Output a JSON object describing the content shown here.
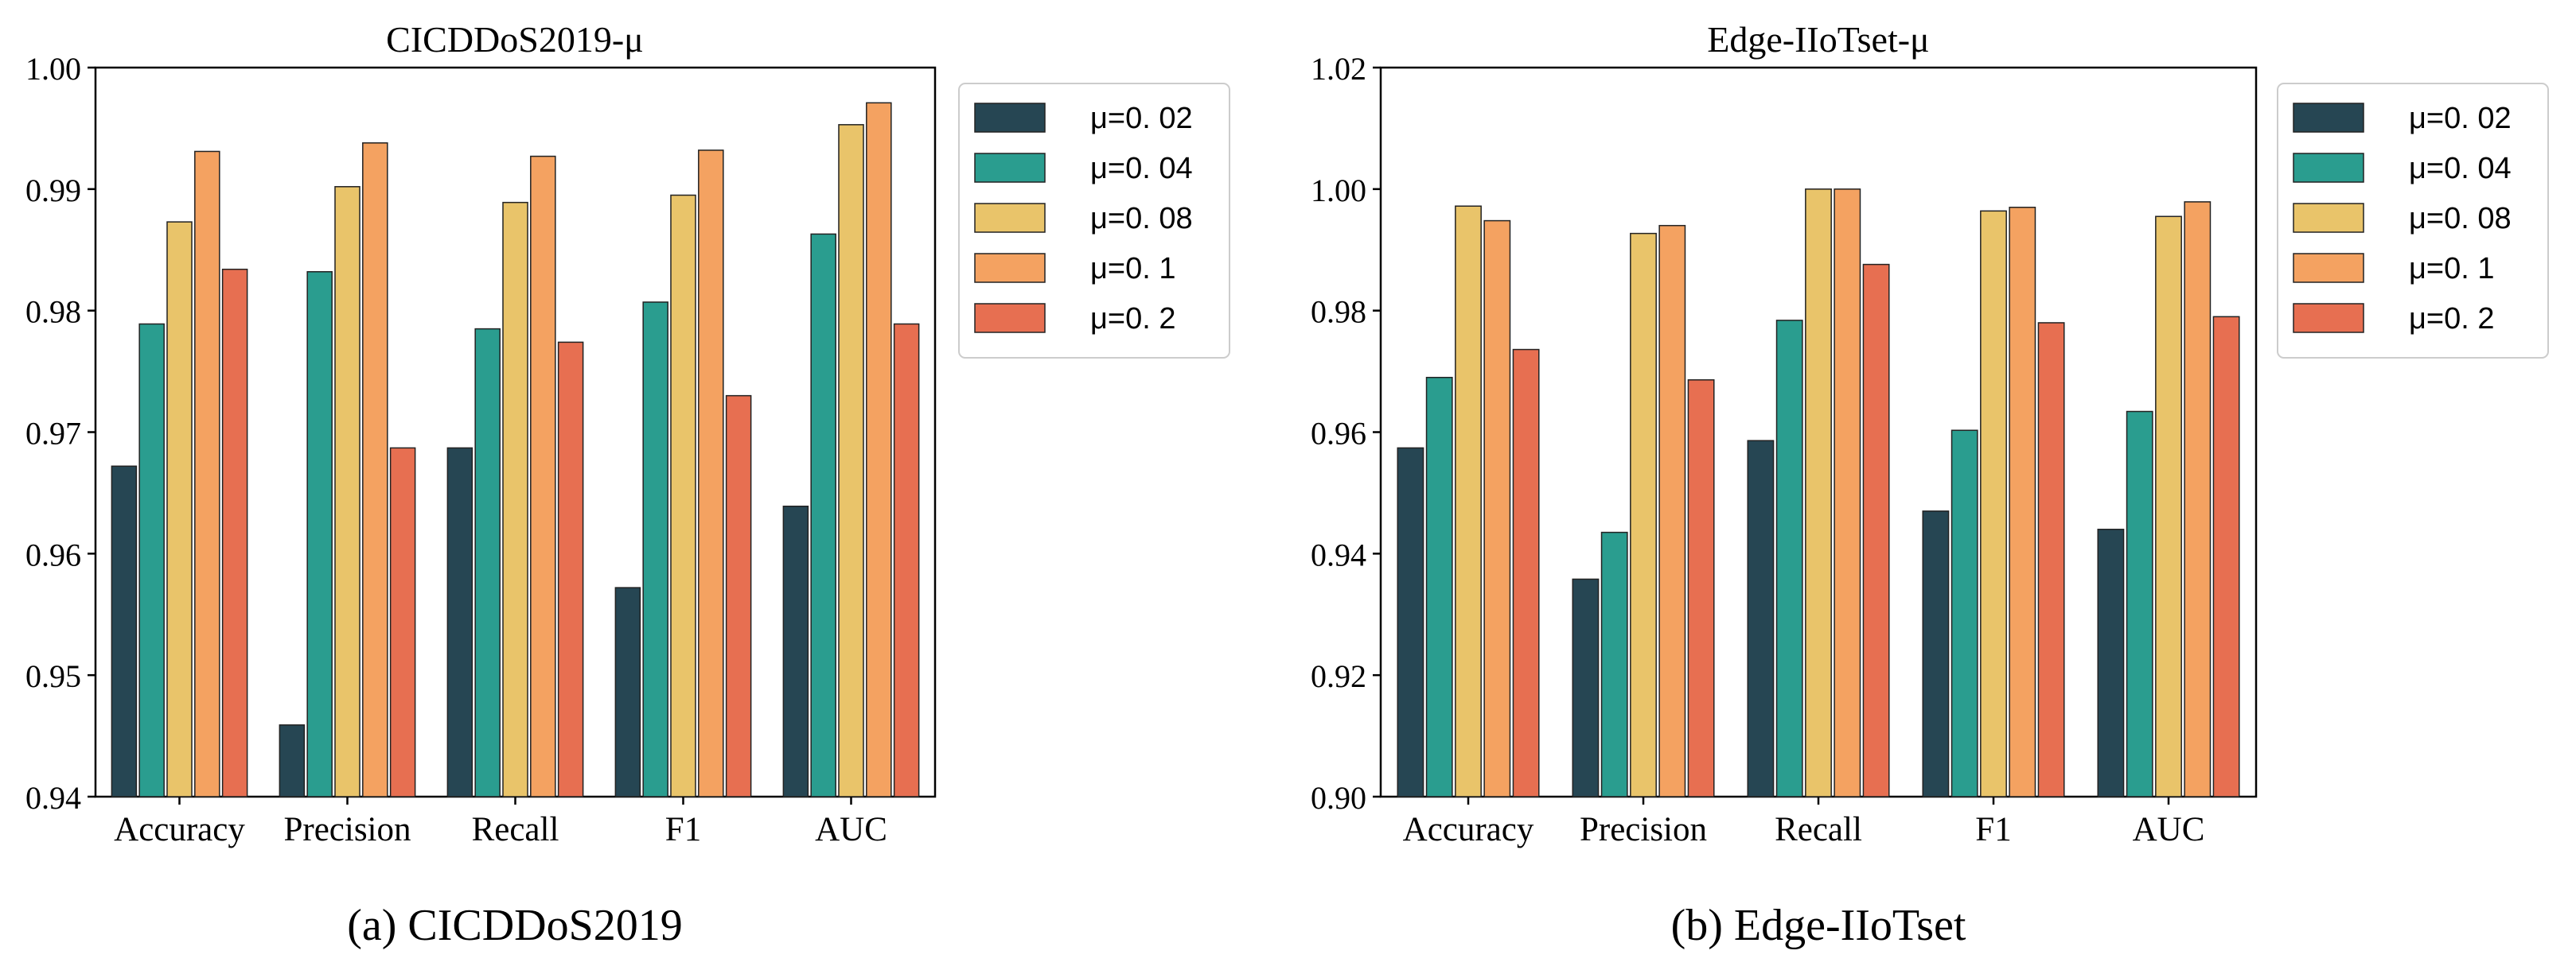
{
  "figure": {
    "colors": {
      "series": [
        "#264653",
        "#2A9D8F",
        "#E9C46A",
        "#F4A261",
        "#E76F51"
      ],
      "bar_edge": "#222222",
      "axis": "#000000",
      "legend_border": "#cccccc"
    }
  },
  "chart_data": [
    {
      "type": "bar",
      "title": "CICDDoS2019-μ",
      "caption": "(a) CICDDoS2019",
      "xlabel": "",
      "ylabel": "",
      "categories": [
        "Accuracy",
        "Precision",
        "Recall",
        "F1",
        "AUC"
      ],
      "ylim": [
        0.94,
        1.0
      ],
      "yticks": [
        0.94,
        0.95,
        0.96,
        0.97,
        0.98,
        0.99,
        1.0
      ],
      "ytick_labels": [
        "0.94",
        "0.95",
        "0.96",
        "0.97",
        "0.98",
        "0.99",
        "1.00"
      ],
      "legend_position": "upper-right-outside",
      "series": [
        {
          "name": "μ=0. 02",
          "values": [
            0.9672,
            0.9459,
            0.9687,
            0.9572,
            0.9639
          ]
        },
        {
          "name": "μ=0. 04",
          "values": [
            0.9789,
            0.9832,
            0.9785,
            0.9807,
            0.9863
          ]
        },
        {
          "name": "μ=0. 08",
          "values": [
            0.9873,
            0.9902,
            0.9889,
            0.9895,
            0.9953
          ]
        },
        {
          "name": "μ=0. 1",
          "values": [
            0.9931,
            0.9938,
            0.9927,
            0.9932,
            0.9971
          ]
        },
        {
          "name": "μ=0. 2",
          "values": [
            0.9834,
            0.9687,
            0.9774,
            0.973,
            0.9789
          ]
        }
      ]
    },
    {
      "type": "bar",
      "title": "Edge-IIoTset-μ",
      "caption": "(b) Edge-IIoTset",
      "xlabel": "",
      "ylabel": "",
      "categories": [
        "Accuracy",
        "Precision",
        "Recall",
        "F1",
        "AUC"
      ],
      "ylim": [
        0.9,
        1.02
      ],
      "yticks": [
        0.9,
        0.92,
        0.94,
        0.96,
        0.98,
        1.0,
        1.02
      ],
      "ytick_labels": [
        "0.90",
        "0.92",
        "0.94",
        "0.96",
        "0.98",
        "1.00",
        "1.02"
      ],
      "legend_position": "upper-right-outside",
      "series": [
        {
          "name": "μ=0. 02",
          "values": [
            0.9574,
            0.9358,
            0.9586,
            0.947,
            0.944
          ]
        },
        {
          "name": "μ=0. 04",
          "values": [
            0.969,
            0.9435,
            0.9784,
            0.9603,
            0.9634
          ]
        },
        {
          "name": "μ=0. 08",
          "values": [
            0.9972,
            0.9927,
            1.0,
            0.9964,
            0.9955
          ]
        },
        {
          "name": "μ=0. 1",
          "values": [
            0.9948,
            0.994,
            1.0,
            0.997,
            0.9979
          ]
        },
        {
          "name": "μ=0. 2",
          "values": [
            0.9736,
            0.9686,
            0.9876,
            0.978,
            0.979
          ]
        }
      ]
    }
  ]
}
